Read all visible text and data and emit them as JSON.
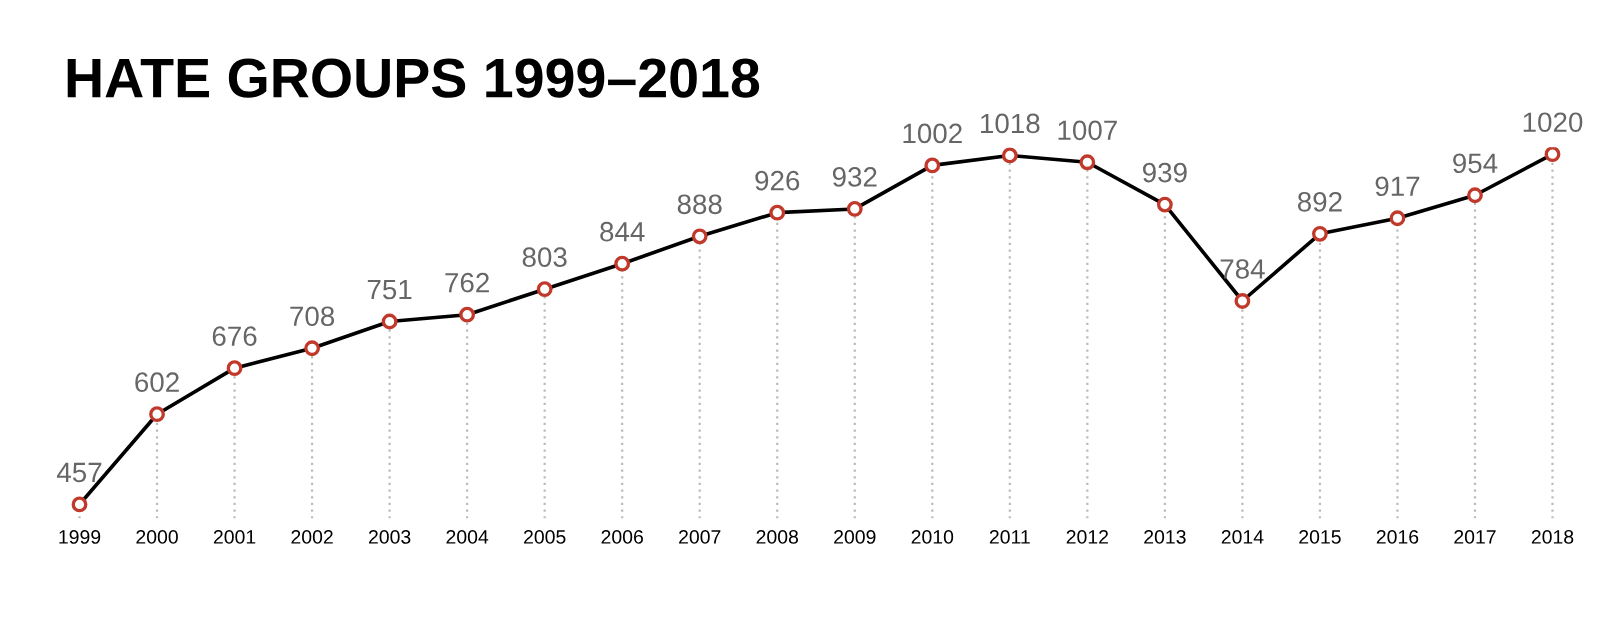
{
  "chart_data": {
    "type": "line",
    "title": "HATE GROUPS 1999–2018",
    "categories": [
      "1999",
      "2000",
      "2001",
      "2002",
      "2003",
      "2004",
      "2005",
      "2006",
      "2007",
      "2008",
      "2009",
      "2010",
      "2011",
      "2012",
      "2013",
      "2014",
      "2015",
      "2016",
      "2017",
      "2018"
    ],
    "series": [
      {
        "color": "#000000",
        "values": [
          457,
          602,
          676,
          708,
          751,
          762,
          803,
          844,
          888,
          926,
          932,
          1002,
          1018,
          1007,
          939,
          784,
          892,
          917,
          954,
          1020
        ]
      }
    ],
    "marker": "circle",
    "data_labels": true,
    "grid": "x",
    "legend": false
  }
}
